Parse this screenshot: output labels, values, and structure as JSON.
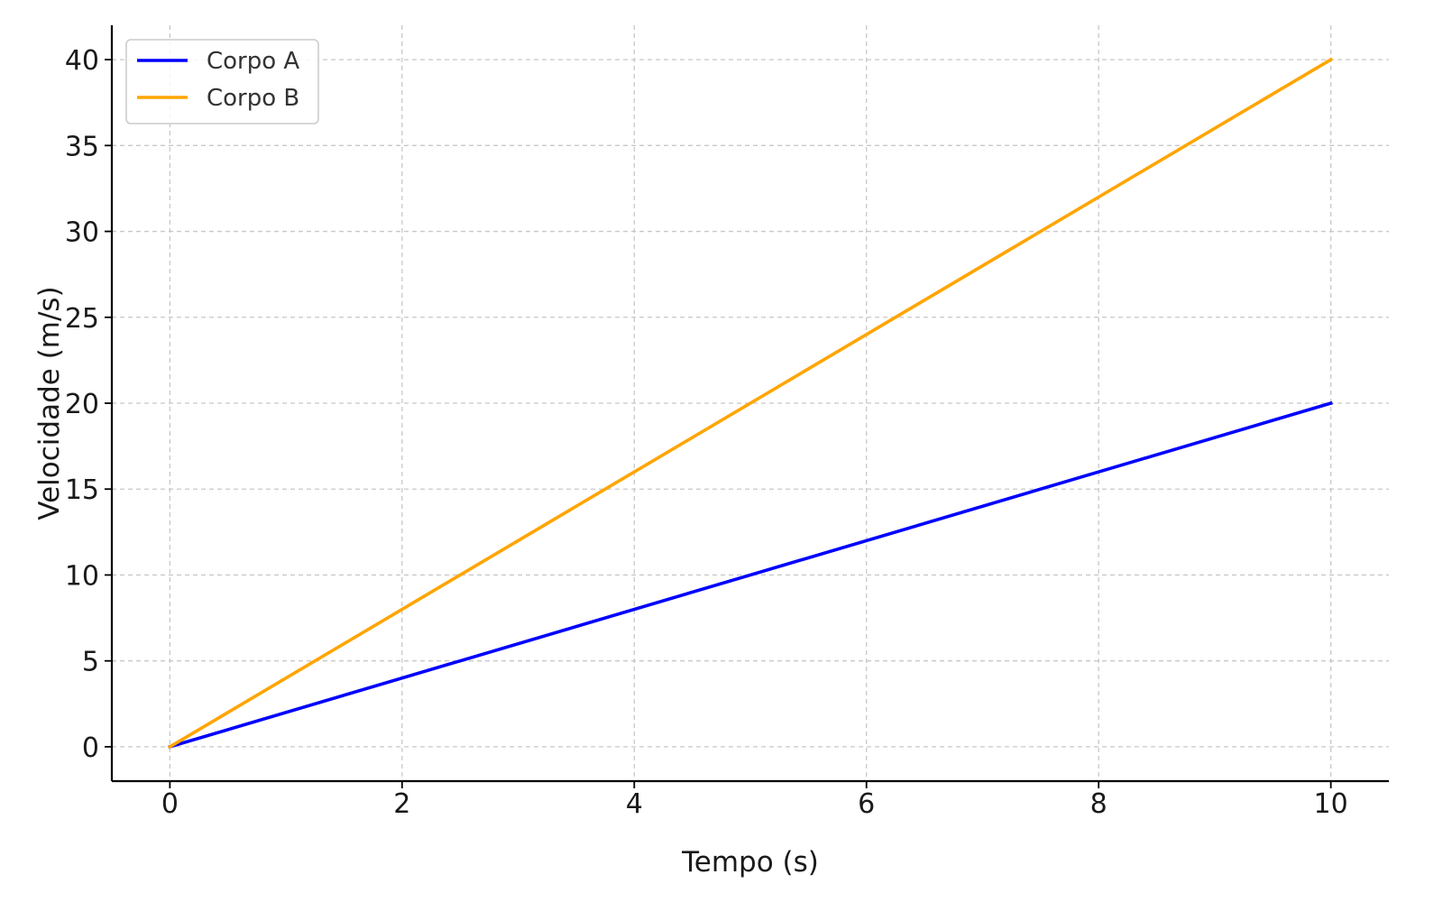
{
  "chart_data": {
    "type": "line",
    "title": "",
    "xlabel": "Tempo (s)",
    "ylabel": "Velocidade (m/s)",
    "xlim": [
      -0.5,
      10.5
    ],
    "ylim": [
      -2,
      42
    ],
    "xticks": [
      0,
      2,
      4,
      6,
      8,
      10
    ],
    "yticks": [
      0,
      5,
      10,
      15,
      20,
      25,
      30,
      35,
      40
    ],
    "grid": true,
    "legend_position": "top-left",
    "series": [
      {
        "name": "Corpo A",
        "color": "#0000ff",
        "x": [
          0,
          10
        ],
        "y": [
          0,
          20
        ]
      },
      {
        "name": "Corpo B",
        "color": "#ffa500",
        "x": [
          0,
          10
        ],
        "y": [
          0,
          40
        ]
      }
    ]
  }
}
